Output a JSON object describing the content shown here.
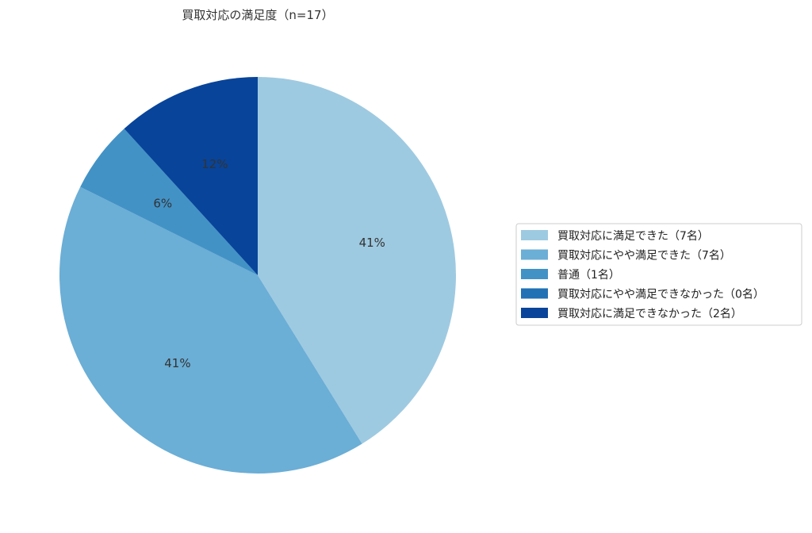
{
  "chart_data": {
    "type": "pie",
    "title": "買取対応の満足度（n=17）",
    "start_angle": "top, clockwise",
    "categories": [
      "買取対応に満足できた（7名）",
      "買取対応にやや満足できた（7名）",
      "普通（1名）",
      "買取対応にやや満足できなかった（0名）",
      "買取対応に満足できなかった（2名）"
    ],
    "values": [
      7,
      7,
      1,
      0,
      2
    ],
    "percent_labels": [
      "41%",
      "41%",
      "6%",
      "",
      "12%"
    ],
    "colors": [
      "#9ecae1",
      "#6baed6",
      "#4292c6",
      "#2171b5",
      "#08449a"
    ],
    "legend_placement": "right"
  }
}
